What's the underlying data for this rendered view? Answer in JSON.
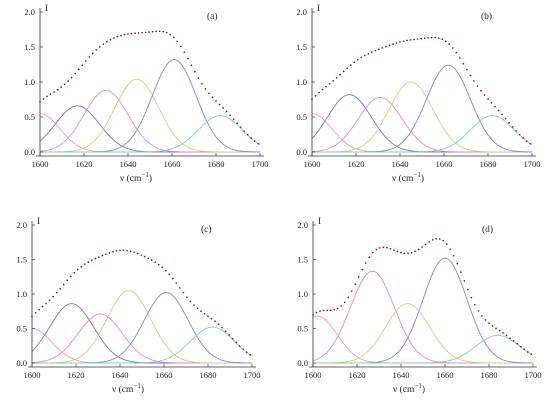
{
  "chart_data": [
    {
      "type": "line",
      "panel_label": "(a)",
      "ylabel": "I",
      "xlabel": "ν (cm",
      "xlabel_sup": "−1",
      "xlabel_end": ")",
      "xlim": [
        1600,
        1700
      ],
      "ylim": [
        0,
        2.0
      ],
      "xticks": [
        1600,
        1620,
        1640,
        1660,
        1680,
        1700
      ],
      "yticks": [
        0.0,
        0.5,
        1.0,
        1.5,
        2.0
      ],
      "components": [
        {
          "center": 1600,
          "amplitude": 0.55,
          "width": 9,
          "color": "#e8a0a8"
        },
        {
          "center": 1617,
          "amplitude": 0.66,
          "width": 10,
          "color": "#7070d8"
        },
        {
          "center": 1630,
          "amplitude": 0.88,
          "width": 10,
          "color": "#e088d0"
        },
        {
          "center": 1644,
          "amplitude": 1.04,
          "width": 10,
          "color": "#c8d080"
        },
        {
          "center": 1661,
          "amplitude": 1.32,
          "width": 10,
          "color": "#8080e0"
        },
        {
          "center": 1682,
          "amplitude": 0.52,
          "width": 10,
          "color": "#80d0a8"
        }
      ],
      "envelope": {
        "x_start": 1600,
        "x_end": 1700,
        "step": 1.6,
        "color": "#7a1030"
      }
    },
    {
      "type": "line",
      "panel_label": "(b)",
      "ylabel": "I",
      "xlabel": "ν (cm",
      "xlabel_sup": "−1",
      "xlabel_end": ")",
      "xlim": [
        1600,
        1700
      ],
      "ylim": [
        0,
        2.0
      ],
      "xticks": [
        1600,
        1620,
        1640,
        1660,
        1680,
        1700
      ],
      "yticks": [
        0.0,
        0.5,
        1.0,
        1.5,
        2.0
      ],
      "components": [
        {
          "center": 1600,
          "amplitude": 0.55,
          "width": 9,
          "color": "#e8a0a8"
        },
        {
          "center": 1617,
          "amplitude": 0.82,
          "width": 10,
          "color": "#7070d8"
        },
        {
          "center": 1631,
          "amplitude": 0.78,
          "width": 10,
          "color": "#e088d0"
        },
        {
          "center": 1645,
          "amplitude": 1.0,
          "width": 10,
          "color": "#c8d080"
        },
        {
          "center": 1662,
          "amplitude": 1.24,
          "width": 10,
          "color": "#8080e0"
        },
        {
          "center": 1682,
          "amplitude": 0.52,
          "width": 10,
          "color": "#80d0a8"
        }
      ],
      "envelope": {
        "x_start": 1600,
        "x_end": 1700,
        "step": 1.6,
        "color": "#7a1030"
      }
    },
    {
      "type": "line",
      "panel_label": "(c)",
      "ylabel": "I",
      "xlabel": "ν (cm",
      "xlabel_sup": "−1",
      "xlabel_end": ")",
      "xlim": [
        1600,
        1700
      ],
      "ylim": [
        0,
        2.0
      ],
      "xticks": [
        1600,
        1620,
        1640,
        1660,
        1680,
        1700
      ],
      "yticks": [
        0.0,
        0.5,
        1.0,
        1.5,
        2.0
      ],
      "components": [
        {
          "center": 1600,
          "amplitude": 0.5,
          "width": 9,
          "color": "#e8a0a8"
        },
        {
          "center": 1618,
          "amplitude": 0.86,
          "width": 10,
          "color": "#7070d8"
        },
        {
          "center": 1631,
          "amplitude": 0.71,
          "width": 10,
          "color": "#e088d0"
        },
        {
          "center": 1644,
          "amplitude": 1.05,
          "width": 10,
          "color": "#c8d080"
        },
        {
          "center": 1661,
          "amplitude": 1.02,
          "width": 10,
          "color": "#8080e0"
        },
        {
          "center": 1682,
          "amplitude": 0.52,
          "width": 10,
          "color": "#80d0a8"
        }
      ],
      "envelope": {
        "x_start": 1600,
        "x_end": 1700,
        "step": 1.6,
        "color": "#7a1030"
      }
    },
    {
      "type": "line",
      "panel_label": "(d)",
      "ylabel": "I",
      "xlabel": "ν (cm",
      "xlabel_sup": "−1",
      "xlabel_end": ")",
      "xlim": [
        1600,
        1700
      ],
      "ylim": [
        0,
        2.0
      ],
      "xticks": [
        1600,
        1620,
        1640,
        1660,
        1680,
        1700
      ],
      "yticks": [
        0.0,
        0.5,
        1.0,
        1.5,
        2.0
      ],
      "components": [
        {
          "center": 1602,
          "amplitude": 0.68,
          "width": 9,
          "color": "#e8a0a8"
        },
        {
          "center": 1627,
          "amplitude": 1.33,
          "width": 10,
          "color": "#e088d0"
        },
        {
          "center": 1643,
          "amplitude": 0.86,
          "width": 10,
          "color": "#c8d080"
        },
        {
          "center": 1660,
          "amplitude": 1.52,
          "width": 10,
          "color": "#8080e0"
        },
        {
          "center": 1684,
          "amplitude": 0.4,
          "width": 10,
          "color": "#80d0a8"
        }
      ],
      "envelope": {
        "x_start": 1600,
        "x_end": 1700,
        "step": 1.6,
        "color": "#7a1030"
      }
    }
  ]
}
